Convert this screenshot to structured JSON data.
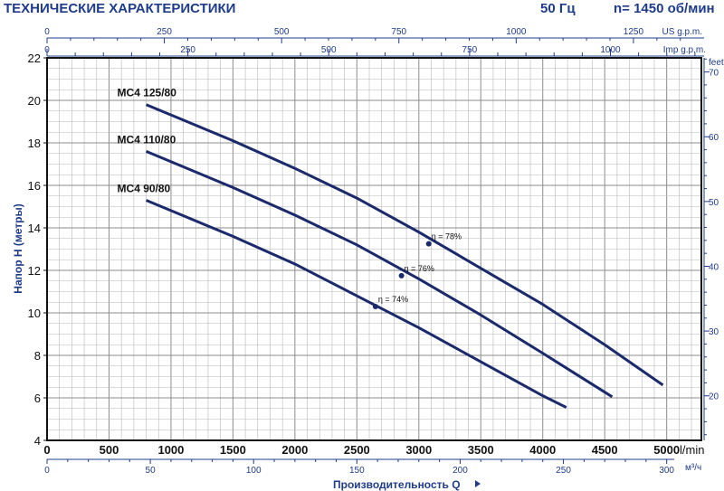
{
  "header": {
    "title": "ТЕХНИЧЕСКИЕ ХАРАКТЕРИСТИКИ",
    "frequency": "50 Гц",
    "speed": "n= 1450 об/мин"
  },
  "chart_data": {
    "type": "line",
    "ylabel": "Напор Н  (метры)",
    "ylim": [
      4,
      22
    ],
    "yticks": [
      4,
      6,
      8,
      10,
      12,
      14,
      16,
      18,
      20,
      22
    ],
    "x_lmin": {
      "unit": "l/min",
      "range": [
        0,
        5280
      ],
      "ticks": [
        0,
        500,
        1000,
        1500,
        2000,
        2500,
        3000,
        3500,
        4000,
        4500,
        5000
      ],
      "labels": [
        "0",
        "500",
        "1000",
        "1500",
        "2000",
        "2500",
        "3000",
        "3500",
        "4000",
        "4500",
        "5000"
      ]
    },
    "x_m3h": {
      "label": "Производительность Q",
      "unit": "м³/ч",
      "ticks": [
        0,
        50,
        100,
        150,
        200,
        250,
        300
      ],
      "labels": [
        "0",
        "50",
        "100",
        "150",
        "200",
        "250",
        "300"
      ]
    },
    "x_usgpm": {
      "unit": "US g.p.m.",
      "ticks": [
        0,
        250,
        500,
        750,
        1000,
        1250
      ],
      "labels": [
        "0",
        "250",
        "500",
        "750",
        "1000",
        "1250"
      ]
    },
    "x_impgpm": {
      "unit": "Imp g.p.m.",
      "ticks": [
        0,
        250,
        500,
        750,
        1000
      ],
      "labels": [
        "0",
        "250",
        "500",
        "750",
        "1000"
      ]
    },
    "y_feet": {
      "unit": "feet",
      "ticks": [
        20,
        30,
        40,
        50,
        60,
        70
      ],
      "labels": [
        "20",
        "30",
        "40",
        "50",
        "60",
        "70"
      ]
    },
    "series": [
      {
        "name": "MC4 125/80",
        "x": [
          800,
          1500,
          2000,
          2500,
          3000,
          3500,
          4000,
          4500,
          4970
        ],
        "y": [
          19.8,
          18.1,
          16.8,
          15.4,
          13.8,
          12.1,
          10.4,
          8.5,
          6.6
        ],
        "eta_label": "η = 78%",
        "eta_point": [
          3080,
          13.25
        ]
      },
      {
        "name": "MC4 110/80",
        "x": [
          800,
          1500,
          2000,
          2500,
          3000,
          3500,
          4000,
          4560
        ],
        "y": [
          17.6,
          15.9,
          14.6,
          13.2,
          11.6,
          9.9,
          8.1,
          6.05
        ],
        "eta_label": "η = 76%",
        "eta_point": [
          2860,
          11.75
        ]
      },
      {
        "name": "MC4 90/80",
        "x": [
          800,
          1500,
          2000,
          2500,
          3000,
          3500,
          4000,
          4190
        ],
        "y": [
          15.3,
          13.6,
          12.3,
          10.8,
          9.3,
          7.7,
          6.1,
          5.55
        ],
        "eta_label": "η = 74%",
        "eta_point": [
          2650,
          10.3
        ]
      }
    ],
    "grid": true,
    "legend": "inline"
  },
  "colors": {
    "curve": "#1a2a6c",
    "header": "#1f3c8a",
    "grid": "#b8b8b8"
  }
}
